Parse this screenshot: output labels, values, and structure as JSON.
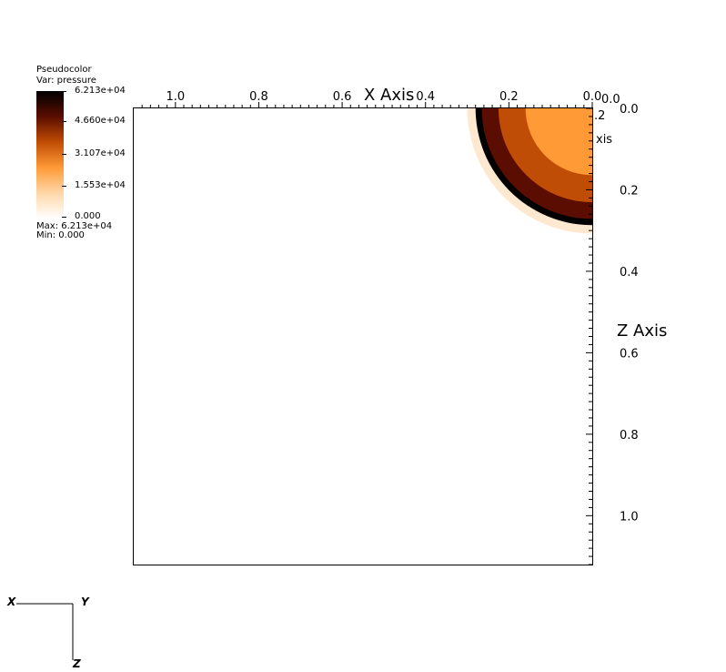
{
  "legend": {
    "plot_type": "Pseudocolor",
    "variable": "Var: pressure",
    "ticks": [
      "6.213e+04",
      "4.660e+04",
      "3.107e+04",
      "1.553e+04",
      "0.000"
    ],
    "max_label": "Max:  6.213e+04",
    "min_label": "Min:  0.000"
  },
  "triad": {
    "x": "X",
    "y": "Y",
    "z": "Z"
  },
  "colors": {
    "colormap": [
      "#ffffff",
      "#ffd7a8",
      "#ff9a36",
      "#c04d05",
      "#5a0d00",
      "#000000"
    ],
    "background": "#ffffff"
  },
  "chart_data": {
    "type": "heatmap",
    "variable": "pressure",
    "x_axis": {
      "title": "X Axis",
      "ticks": [
        "1.0",
        "0.8",
        "0.6",
        "0.4",
        "0.2",
        "0.0"
      ],
      "range": [
        1.1,
        0.0
      ],
      "reversed": true
    },
    "z_axis": {
      "title": "Z Axis",
      "ticks": [
        "0.0",
        "0.2",
        "0.4",
        "0.6",
        "0.8",
        "1.0"
      ],
      "range": [
        0.0,
        1.12
      ]
    },
    "y_axis": {
      "title_fragment": "xis",
      "tick_fragment": ".2",
      "tick_fragment_2": "0.0"
    },
    "value_range": [
      0.0,
      62130
    ],
    "feature": {
      "shape": "quarter-disc at corner x=0, z=0",
      "rings": [
        {
          "radius": 0.235,
          "value": 48000
        },
        {
          "radius": 0.28,
          "value": 62130
        },
        {
          "radius": 0.265,
          "value": 38000
        },
        {
          "radius": 0.225,
          "value": 26000
        },
        {
          "radius": 0.16,
          "value": 22000
        }
      ]
    },
    "grid": false
  }
}
